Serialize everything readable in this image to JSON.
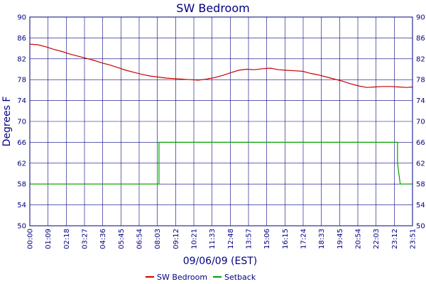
{
  "chart_data": {
    "type": "line",
    "title": "SW Bedroom",
    "xlabel": "09/06/09 (EST)",
    "ylabel": "Degrees F",
    "ylim": [
      50,
      90
    ],
    "yticks": [
      50,
      54,
      58,
      62,
      66,
      70,
      74,
      78,
      82,
      86,
      90
    ],
    "xlim": [
      "00:00",
      "23:51"
    ],
    "xtick_labels": [
      "00:00",
      "01:09",
      "02:18",
      "03:27",
      "04:36",
      "05:45",
      "06:54",
      "08:03",
      "09:12",
      "10:21",
      "11:33",
      "12:48",
      "13:57",
      "15:06",
      "16:15",
      "17:24",
      "18:33",
      "19:45",
      "20:54",
      "22:03",
      "23:12",
      "23:51"
    ],
    "grid": true,
    "right_axis": true,
    "legend_position": "bottom-center",
    "series": [
      {
        "name": "SW Bedroom",
        "color": "#cc0000",
        "points": [
          [
            "00:00",
            84.8
          ],
          [
            "00:30",
            84.7
          ],
          [
            "01:00",
            84.3
          ],
          [
            "01:30",
            83.8
          ],
          [
            "02:00",
            83.4
          ],
          [
            "02:30",
            82.9
          ],
          [
            "03:00",
            82.5
          ],
          [
            "03:30",
            82.1
          ],
          [
            "04:00",
            81.7
          ],
          [
            "04:30",
            81.2
          ],
          [
            "05:00",
            80.8
          ],
          [
            "05:30",
            80.3
          ],
          [
            "06:00",
            79.8
          ],
          [
            "06:30",
            79.4
          ],
          [
            "07:00",
            79.0
          ],
          [
            "07:30",
            78.7
          ],
          [
            "08:00",
            78.5
          ],
          [
            "08:30",
            78.3
          ],
          [
            "09:00",
            78.2
          ],
          [
            "09:30",
            78.1
          ],
          [
            "10:00",
            78.0
          ],
          [
            "10:30",
            77.9
          ],
          [
            "11:00",
            78.1
          ],
          [
            "11:30",
            78.4
          ],
          [
            "12:00",
            78.8
          ],
          [
            "12:30",
            79.3
          ],
          [
            "13:00",
            79.8
          ],
          [
            "13:30",
            80.0
          ],
          [
            "14:00",
            79.9
          ],
          [
            "14:30",
            80.1
          ],
          [
            "15:00",
            80.2
          ],
          [
            "15:30",
            79.9
          ],
          [
            "16:00",
            79.8
          ],
          [
            "16:30",
            79.7
          ],
          [
            "17:00",
            79.6
          ],
          [
            "17:30",
            79.2
          ],
          [
            "18:00",
            78.9
          ],
          [
            "18:30",
            78.5
          ],
          [
            "19:00",
            78.1
          ],
          [
            "19:30",
            77.7
          ],
          [
            "20:00",
            77.2
          ],
          [
            "20:30",
            76.8
          ],
          [
            "21:00",
            76.5
          ],
          [
            "21:30",
            76.6
          ],
          [
            "22:00",
            76.7
          ],
          [
            "22:30",
            76.7
          ],
          [
            "23:00",
            76.6
          ],
          [
            "23:30",
            76.5
          ],
          [
            "23:51",
            76.6
          ]
        ]
      },
      {
        "name": "Setback",
        "color": "#00a000",
        "points": [
          [
            "00:00",
            58
          ],
          [
            "08:03",
            58
          ],
          [
            "08:03",
            66
          ],
          [
            "22:55",
            66
          ],
          [
            "22:55",
            62
          ],
          [
            "23:05",
            58
          ],
          [
            "23:51",
            58
          ]
        ]
      }
    ]
  }
}
